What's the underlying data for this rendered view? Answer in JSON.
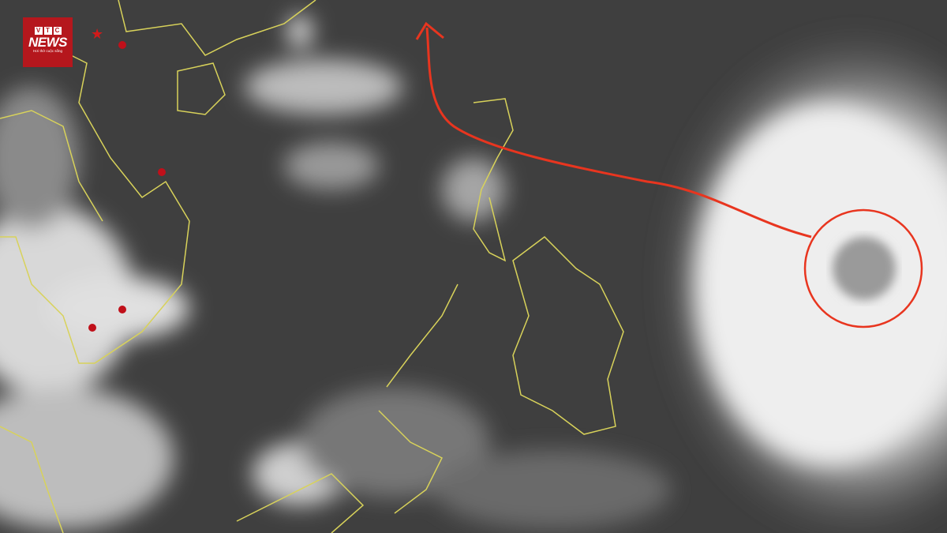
{
  "logo": {
    "brand_top": [
      "V",
      "T",
      "C"
    ],
    "brand_main": "NEWS",
    "slogan": "Hơi thở cuộc sống",
    "color": "#b5171d"
  },
  "annotations": {
    "track_color": "#e8351f",
    "circle_color": "#e8351f",
    "marker_color": "#c0101a",
    "coastline_color": "#d8d25a"
  },
  "map": {
    "type": "infrared satellite image",
    "features": [
      "typhoon",
      "forecast-track-arrow",
      "storm-center-circle",
      "city-markers",
      "capital-star"
    ]
  }
}
